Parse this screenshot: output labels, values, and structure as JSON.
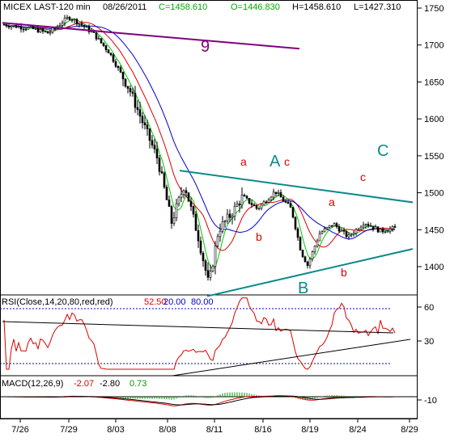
{
  "header": {
    "symbol": "MICEX LAST-120 min",
    "date": "08/26/2011",
    "close": "C=1458.610",
    "open": "O=1446.830",
    "high": "H=1458.610",
    "low": "L=1427.310"
  },
  "annotations": {
    "wave_9": "9",
    "wave_A": "A",
    "wave_B": "B",
    "wave_C": "C",
    "sub_a1": "a",
    "sub_b1": "b",
    "sub_c1": "c",
    "sub_a2": "a",
    "sub_b2": "b",
    "sub_c2": "c"
  },
  "rsi": {
    "label": "RSI(Close,14,20,80,red,red)",
    "value": "52.50",
    "lower": "20.00",
    "upper": "80.00"
  },
  "macd": {
    "label": "MACD(12,26,9)",
    "macd_value": "-2.07",
    "signal_value": "-2.80",
    "hist_value": "0.73"
  },
  "colors": {
    "up": "#000000",
    "down": "#000000",
    "ma_fast": "#00cc00",
    "ma_mid": "#dd0000",
    "ma_slow": "#0000cc",
    "trend": "#0a8a8a",
    "resistance_9": "#800080",
    "rsi_line": "#dd0000",
    "macd_line": "#dd0000",
    "signal_line": "#000000",
    "histogram": "#009900",
    "level_line": "#0000cc"
  },
  "chart_data": [
    {
      "type": "candlestick",
      "title": "MICEX LAST-120 min",
      "ylim": [
        1360,
        1760
      ],
      "y_ticks": [
        1750,
        1700,
        1650,
        1600,
        1550,
        1500,
        1450,
        1400
      ],
      "x_ticks": [
        "7/26",
        "7/29",
        "8/03",
        "8/08",
        "8/11",
        "8/16",
        "8/19",
        "8/24",
        "8/29"
      ],
      "moving_averages": [
        "green (fast)",
        "red (medium)",
        "blue (slow)"
      ],
      "trendlines": [
        {
          "name": "9",
          "from": [
            "7/26",
            1730
          ],
          "to": [
            "8/19",
            1695
          ]
        },
        {
          "name": "upper",
          "from": [
            "8/09",
            1530
          ],
          "to": [
            "8/29",
            1487
          ]
        },
        {
          "name": "lower",
          "from": [
            "8/10",
            1360
          ],
          "to": [
            "8/29",
            1424
          ]
        }
      ],
      "wave_labels": {
        "9": "7/29",
        "A": "8/16",
        "B": "8/19",
        "C": "8/26"
      }
    },
    {
      "type": "line",
      "title": "RSI(Close,14,20,80,red,red)",
      "ylim": [
        0,
        70
      ],
      "y_ticks": [
        60,
        30
      ],
      "levels": [
        20,
        80
      ],
      "last_value": 52.5
    },
    {
      "type": "line",
      "title": "MACD(12,26,9)",
      "y_ticks": [
        -10
      ],
      "series": [
        {
          "name": "MACD",
          "last": -2.07
        },
        {
          "name": "Signal",
          "last": -2.8
        },
        {
          "name": "Histogram",
          "last": 0.73
        }
      ]
    }
  ]
}
